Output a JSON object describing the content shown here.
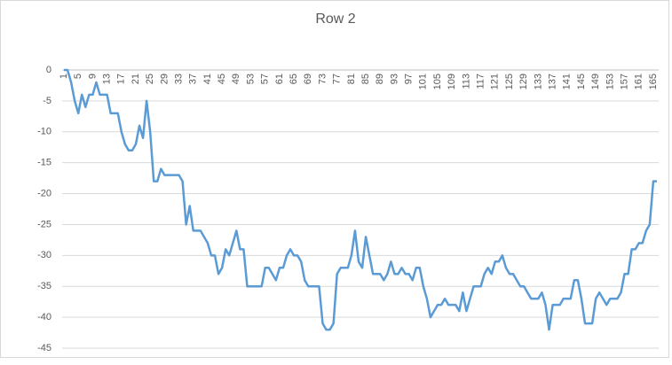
{
  "chart_data": {
    "type": "line",
    "title": "Row 2",
    "categories": [
      1,
      null,
      null,
      null,
      5,
      null,
      null,
      null,
      9,
      null,
      null,
      null,
      13,
      null,
      null,
      null,
      17,
      null,
      null,
      null,
      21,
      null,
      null,
      null,
      25,
      null,
      null,
      null,
      29,
      null,
      null,
      null,
      33,
      null,
      null,
      null,
      37,
      null,
      null,
      null,
      41,
      null,
      null,
      null,
      45,
      null,
      null,
      null,
      49,
      null,
      null,
      null,
      53,
      null,
      null,
      null,
      57,
      null,
      null,
      null,
      61,
      null,
      null,
      null,
      65,
      null,
      null,
      null,
      69,
      null,
      null,
      null,
      73,
      null,
      null,
      null,
      77,
      null,
      null,
      null,
      81,
      null,
      null,
      null,
      85,
      null,
      null,
      null,
      89,
      null,
      null,
      null,
      93,
      null,
      null,
      null,
      97,
      null,
      null,
      null,
      101,
      null,
      null,
      null,
      105,
      null,
      null,
      null,
      109,
      null,
      null,
      null,
      113,
      null,
      null,
      null,
      117,
      null,
      null,
      null,
      121,
      null,
      null,
      null,
      125,
      null,
      null,
      null,
      129,
      null,
      null,
      null,
      133,
      null,
      null,
      null,
      137,
      null,
      null,
      null,
      141,
      null,
      null,
      null,
      145,
      null,
      null,
      null,
      149,
      null,
      null,
      null,
      153,
      null,
      null,
      null,
      157,
      null,
      null,
      null,
      161,
      null,
      null,
      null,
      165,
      null
    ],
    "values": [
      0,
      0,
      -2,
      -5,
      -7,
      -4,
      -6,
      -4,
      -4,
      -2,
      -4,
      -4,
      -4,
      -7,
      -7,
      -7,
      -10,
      -12,
      -13,
      -13,
      -12,
      -9,
      -11,
      -5,
      -10,
      -18,
      -18,
      -16,
      -17,
      -17,
      -17,
      -17,
      -17,
      -18,
      -25,
      -22,
      -26,
      -26,
      -26,
      -27,
      -28,
      -30,
      -30,
      -33,
      -32,
      -29,
      -30,
      -28,
      -26,
      -29,
      -29,
      -35,
      -35,
      -35,
      -35,
      -35,
      -32,
      -32,
      -33,
      -34,
      -32,
      -32,
      -30,
      -29,
      -30,
      -30,
      -31,
      -34,
      -35,
      -35,
      -35,
      -35,
      -41,
      -42,
      -42,
      -41,
      -33,
      -32,
      -32,
      -32,
      -30,
      -26,
      -31,
      -32,
      -27,
      -30,
      -33,
      -33,
      -33,
      -34,
      -33,
      -31,
      -33,
      -33,
      -32,
      -33,
      -33,
      -34,
      -32,
      -32,
      -35,
      -37,
      -40,
      -39,
      -38,
      -38,
      -37,
      -38,
      -38,
      -38,
      -39,
      -36,
      -39,
      -37,
      -35,
      -35,
      -35,
      -33,
      -32,
      -33,
      -31,
      -31,
      -30,
      -32,
      -33,
      -33,
      -34,
      -35,
      -35,
      -36,
      -37,
      -37,
      -37,
      -36,
      -38,
      -42,
      -38,
      -38,
      -38,
      -37,
      -37,
      -37,
      -34,
      -34,
      -37,
      -41,
      -41,
      -41,
      -37,
      -36,
      -37,
      -38,
      -37,
      -37,
      -37,
      -36,
      -33,
      -33,
      -29,
      -29,
      -28,
      -28,
      -26,
      -25,
      -18,
      -18
    ],
    "color": "#5b9bd5",
    "ylim": [
      -45,
      0
    ],
    "yticks": [
      0,
      -5,
      -10,
      -15,
      -20,
      -25,
      -30,
      -35,
      -40,
      -45
    ],
    "grid": true
  }
}
